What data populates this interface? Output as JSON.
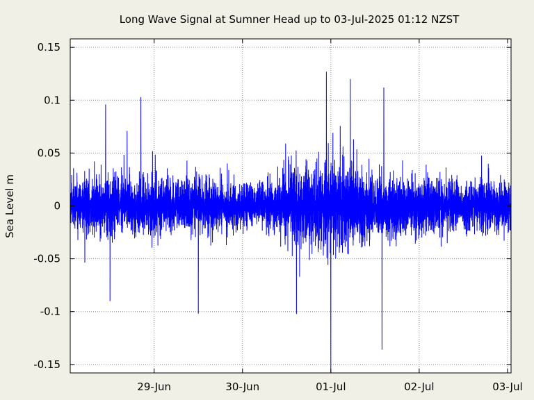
{
  "chart_data": {
    "type": "line",
    "title": "Long Wave Signal at Sumner Head up to 03-Jul-2025 01:12 NZST",
    "xlabel": "",
    "ylabel": "Sea Level m",
    "x_range": [
      "2025-06-28 00:00",
      "2025-07-03 01:12"
    ],
    "xlim": [
      -1.95,
      3.04
    ],
    "ylim": [
      -0.158,
      0.158
    ],
    "yticks": [
      {
        "value": 0.15,
        "label": "0.15"
      },
      {
        "value": 0.1,
        "label": "0.1"
      },
      {
        "value": 0.05,
        "label": "0.05"
      },
      {
        "value": 0,
        "label": "0"
      },
      {
        "value": -0.05,
        "label": "-0.05"
      },
      {
        "value": -0.1,
        "label": "-0.1"
      },
      {
        "value": -0.15,
        "label": "-0.15"
      }
    ],
    "xticks": [
      {
        "value": -1,
        "label": "29-Jun"
      },
      {
        "value": 0,
        "label": "30-Jun"
      },
      {
        "value": 1,
        "label": "01-Jul"
      },
      {
        "value": 2,
        "label": "02-Jul"
      },
      {
        "value": 3,
        "label": "03-Jul"
      }
    ],
    "grid": true,
    "series": [
      {
        "color": "#0000ff",
        "envelope_days": [
          -1.95,
          -1.5,
          -1.0,
          -0.5,
          0.0,
          0.25,
          0.5,
          0.75,
          1.0,
          1.25,
          1.5,
          1.75,
          2.0,
          2.5,
          3.04
        ],
        "envelope_amplitude_m": [
          0.035,
          0.04,
          0.035,
          0.035,
          0.03,
          0.03,
          0.05,
          0.055,
          0.06,
          0.05,
          0.045,
          0.04,
          0.035,
          0.035,
          0.035
        ],
        "extremes": [
          {
            "day": 1.0,
            "value": -0.158
          },
          {
            "day": 0.95,
            "value": 0.127
          },
          {
            "day": 1.22,
            "value": 0.12
          },
          {
            "day": 1.6,
            "value": 0.112
          },
          {
            "day": 1.58,
            "value": -0.136
          },
          {
            "day": -1.15,
            "value": 0.103
          },
          {
            "day": -1.55,
            "value": 0.096
          },
          {
            "day": -0.5,
            "value": -0.102
          },
          {
            "day": -1.5,
            "value": -0.09
          }
        ]
      }
    ]
  }
}
